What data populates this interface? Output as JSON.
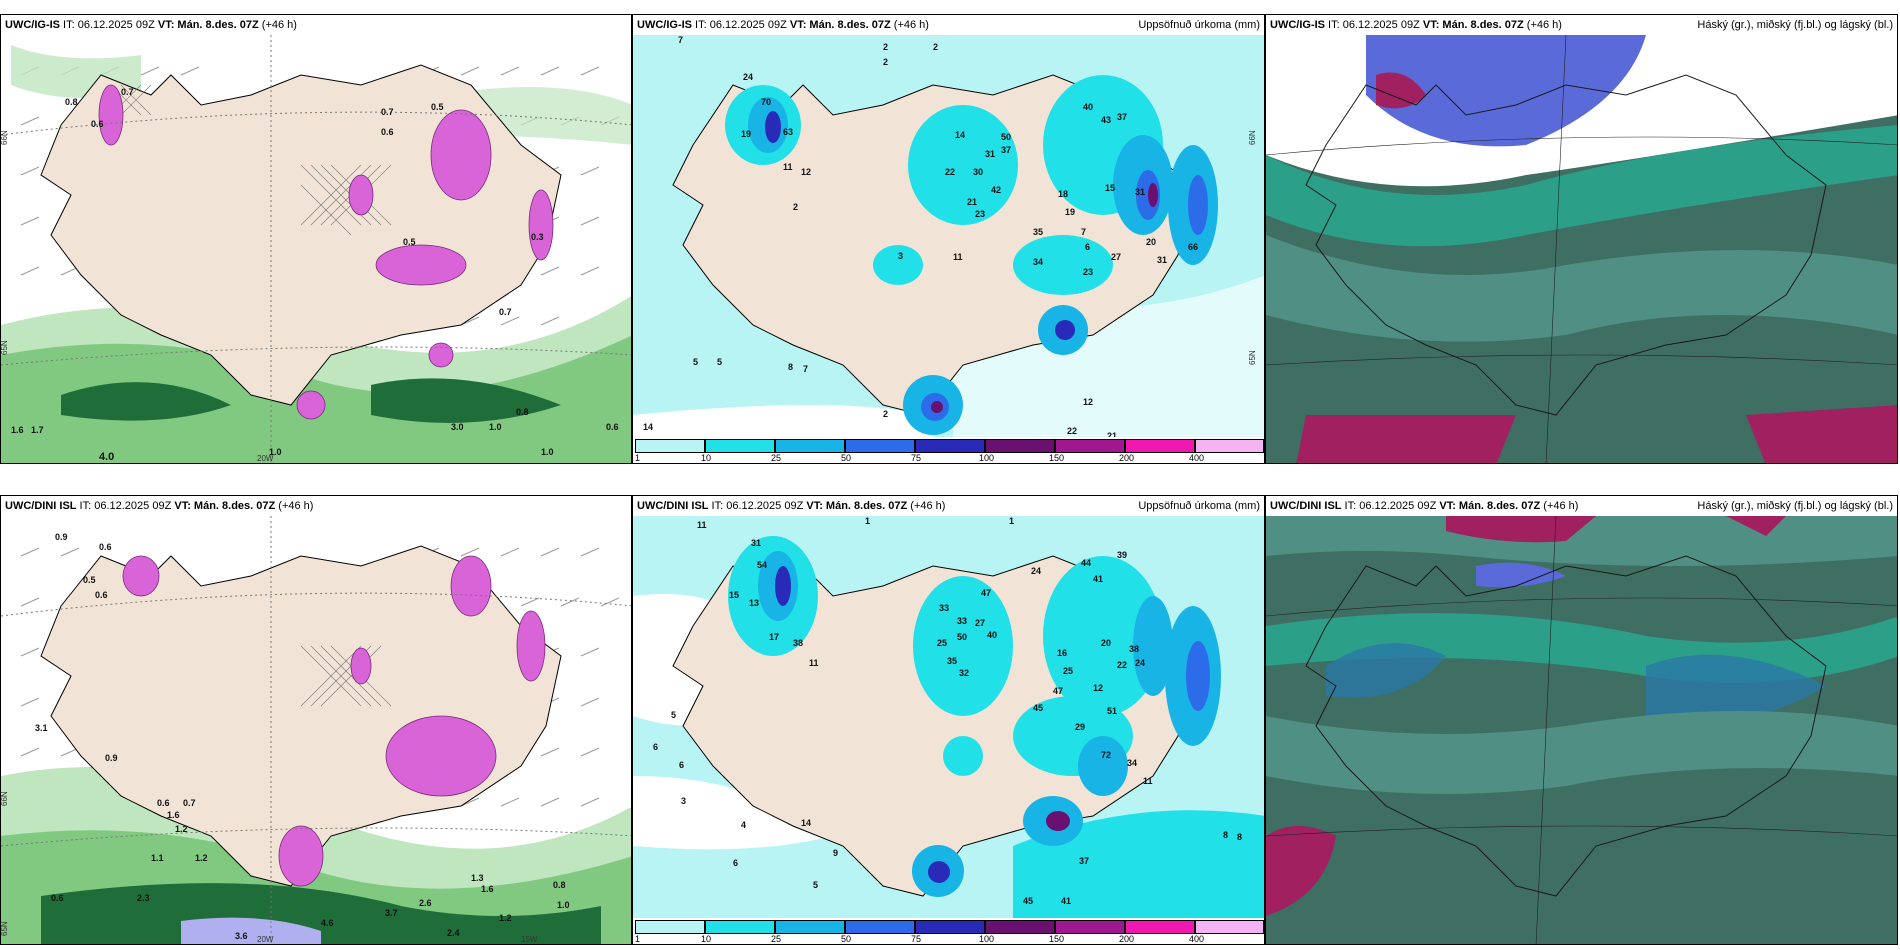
{
  "palette": {
    "land": "#f1e4d6",
    "sea_precip": "#b8f4f4",
    "c10": "#22e0e8",
    "c25": "#18b4e6",
    "c50": "#2c6ce8",
    "c75": "#2a2ab8",
    "c100": "#6a1070",
    "c150": "#a01890",
    "c200": "#f018b0",
    "c400": "#f4b4f4",
    "cloud_dark": "#3f6e62",
    "cloud_mid": "#4f8f84",
    "cloud_teal": "#1ec8a8",
    "cloud_blue": "#5a6ad8",
    "cloud_red": "#a02060",
    "snow_magenta": "#d864d8",
    "green_light": "#bfe6bf",
    "green_mid": "#6cbf6c",
    "green_dark": "#1f6e3a"
  },
  "panels": [
    {
      "id": "p1",
      "model": "UWC/IG-IS",
      "it": " IT: 06.12.2025 09Z ",
      "vt_label": "VT:",
      "vt_value": " Mán. 8.des. 07Z",
      "offset": " (+46 h)",
      "right_title": "",
      "labels": [
        "0.8",
        "0.6",
        "0.7",
        "0.7",
        "0.6",
        "0.5",
        "1.0",
        "4.0",
        "1.6",
        "1.7",
        "3.0",
        "1.0",
        "0.8",
        "1.0",
        "0.6",
        "0.7",
        "0.3",
        "0.5"
      ],
      "axis_labels": [
        "66N",
        "65N",
        "20W"
      ]
    },
    {
      "id": "p2",
      "model": "UWC/IG-IS",
      "it": " IT: 06.12.2025 09Z ",
      "vt_label": "VT:",
      "vt_value": " Mán. 8.des. 07Z",
      "offset": " (+46 h)",
      "right_title": "Uppsöfnuð úrkoma (mm)",
      "labels": [
        "7",
        "2",
        "2",
        "2",
        "24",
        "70",
        "19",
        "63",
        "11",
        "12",
        "2",
        "40",
        "43",
        "37",
        "14",
        "50",
        "37",
        "30",
        "22",
        "31",
        "42",
        "21",
        "23",
        "18",
        "19",
        "35",
        "7",
        "6",
        "20",
        "31",
        "34",
        "23",
        "27",
        "31",
        "15",
        "11",
        "3",
        "8",
        "7",
        "5",
        "5",
        "14",
        "2",
        "12",
        "22",
        "21",
        "66"
      ],
      "axis_labels": [
        "66N",
        "65N"
      ]
    },
    {
      "id": "p3",
      "model": "UWC/IG-IS",
      "it": " IT: 06.12.2025 09Z ",
      "vt_label": "VT:",
      "vt_value": " Mán. 8.des. 07Z",
      "offset": " (+46 h)",
      "right_title": "Háský (gr.), miðský (fj.bl.) og lágský (bl.)",
      "labels": [],
      "axis_labels": []
    },
    {
      "id": "p4",
      "model": "UWC/DINI ISL",
      "it": " IT: 06.12.2025 09Z ",
      "vt_label": "VT:",
      "vt_value": " Mán. 8.des. 07Z",
      "offset": " (+46 h)",
      "right_title": "",
      "labels": [
        "0.9",
        "0.6",
        "0.5",
        "0.6",
        "3.1",
        "0.9",
        "0.6",
        "0.7",
        "1.6",
        "1.2",
        "1.1",
        "1.2",
        "0.6",
        "2.3",
        "3.6",
        "4.6",
        "3.7",
        "2.6",
        "2.4",
        "1.2",
        "0.8",
        "1.0",
        "1.3",
        "1.6"
      ],
      "axis_labels": [
        "66N",
        "65N",
        "20W",
        "15W"
      ]
    },
    {
      "id": "p5",
      "model": "UWC/DINI ISL",
      "it": " IT: 06.12.2025 09Z ",
      "vt_label": "VT:",
      "vt_value": " Mán. 8.des. 07Z",
      "offset": " (+46 h)",
      "right_title": "Uppsöfnuð úrkoma (mm)",
      "labels": [
        "11",
        "1",
        "1",
        "31",
        "54",
        "15",
        "13",
        "17",
        "38",
        "11",
        "33",
        "33",
        "47",
        "24",
        "44",
        "41",
        "39",
        "50",
        "27",
        "40",
        "25",
        "35",
        "32",
        "16",
        "25",
        "20",
        "38",
        "24",
        "22",
        "47",
        "12",
        "45",
        "29",
        "51",
        "72",
        "34",
        "11",
        "37",
        "45",
        "41",
        "8",
        "8",
        "6",
        "6",
        "3",
        "4",
        "14",
        "9",
        "5",
        "6",
        "5"
      ],
      "axis_labels": []
    },
    {
      "id": "p6",
      "model": "UWC/DINI ISL",
      "it": " IT: 06.12.2025 09Z ",
      "vt_label": "VT:",
      "vt_value": " Mán. 8.des. 07Z",
      "offset": " (+46 h)",
      "right_title": "Háský (gr.), miðský (fj.bl.) og lágský (bl.)",
      "labels": [],
      "axis_labels": []
    }
  ],
  "colorbar": {
    "ticks": [
      "1",
      "10",
      "25",
      "50",
      "75",
      "100",
      "150",
      "200",
      "400"
    ]
  }
}
